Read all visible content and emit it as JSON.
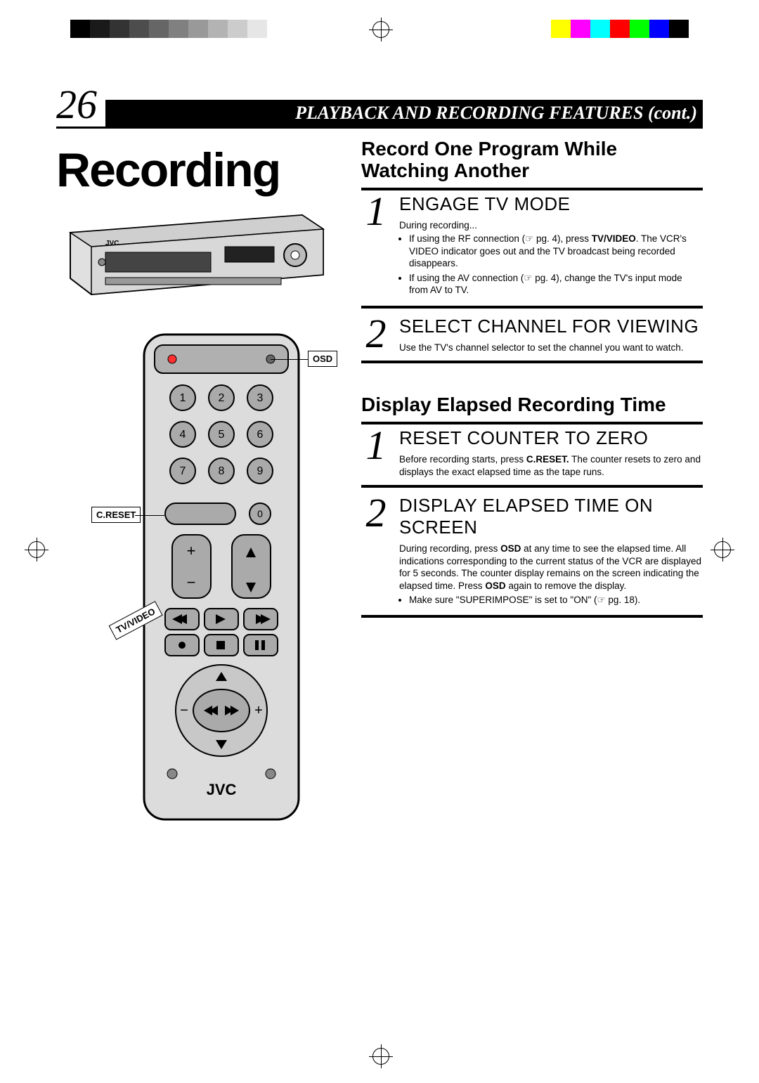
{
  "crop": {
    "grayscale": [
      "#000000",
      "#1a1a1a",
      "#333333",
      "#4d4d4d",
      "#666666",
      "#808080",
      "#999999",
      "#b3b3b3",
      "#cccccc",
      "#e6e6e6"
    ],
    "colors": [
      "#ffff00",
      "#ff00ff",
      "#00ffff",
      "#ff0000",
      "#00ff00",
      "#0000ff",
      "#000000"
    ]
  },
  "header": {
    "page_number": "26",
    "title": "PLAYBACK AND RECORDING FEATURES (cont.)"
  },
  "main_title": "Recording",
  "callouts": {
    "osd": "OSD",
    "creset": "C.RESET",
    "tvvideo": "TV/VIDEO"
  },
  "remote_brand": "JVC",
  "sectionA": {
    "heading": "Record One Program While Watching Another",
    "steps": [
      {
        "num": "1",
        "title": "ENGAGE TV MODE",
        "intro": "During recording...",
        "bullets": [
          "If using the RF connection (☞ pg. 4), press <b>TV/VIDEO</b>. The VCR's VIDEO indicator goes out and the TV broadcast being recorded disappears.",
          "If using the AV connection (☞ pg. 4), change the TV's input mode from AV to TV."
        ]
      },
      {
        "num": "2",
        "title": "SELECT CHANNEL FOR VIEWING",
        "text": "Use the TV's channel selector to set the channel you want to watch."
      }
    ]
  },
  "sectionB": {
    "heading": "Display Elapsed Recording Time",
    "steps": [
      {
        "num": "1",
        "title": "RESET COUNTER TO ZERO",
        "text": "Before recording starts, press <b>C.RESET.</b> The counter resets to zero and displays the exact elapsed time as the tape runs."
      },
      {
        "num": "2",
        "title": "DISPLAY ELAPSED TIME ON SCREEN",
        "text": "During recording, press <b>OSD</b> at any time to see the elapsed time. All indications corresponding to the current status of the VCR are displayed for 5 seconds. The counter display remains on the screen indicating the elapsed time. Press <b>OSD</b> again to remove the display.",
        "bullets": [
          "Make sure \"SUPERIMPOSE\" is set to \"ON\" (☞ pg. 18)."
        ]
      }
    ]
  }
}
